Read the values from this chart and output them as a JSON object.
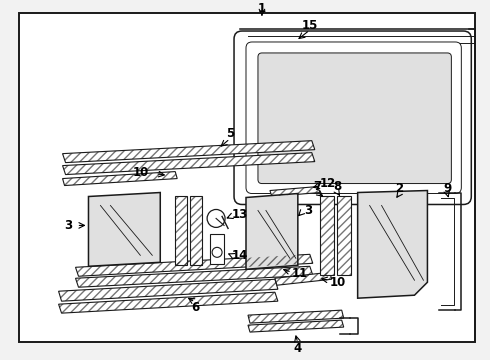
{
  "bg_color": "#f2f2f2",
  "line_color": "#1a1a1a",
  "white": "#ffffff",
  "glass_color": "#e0e0e0",
  "fig_width": 4.9,
  "fig_height": 3.6,
  "dpi": 100
}
